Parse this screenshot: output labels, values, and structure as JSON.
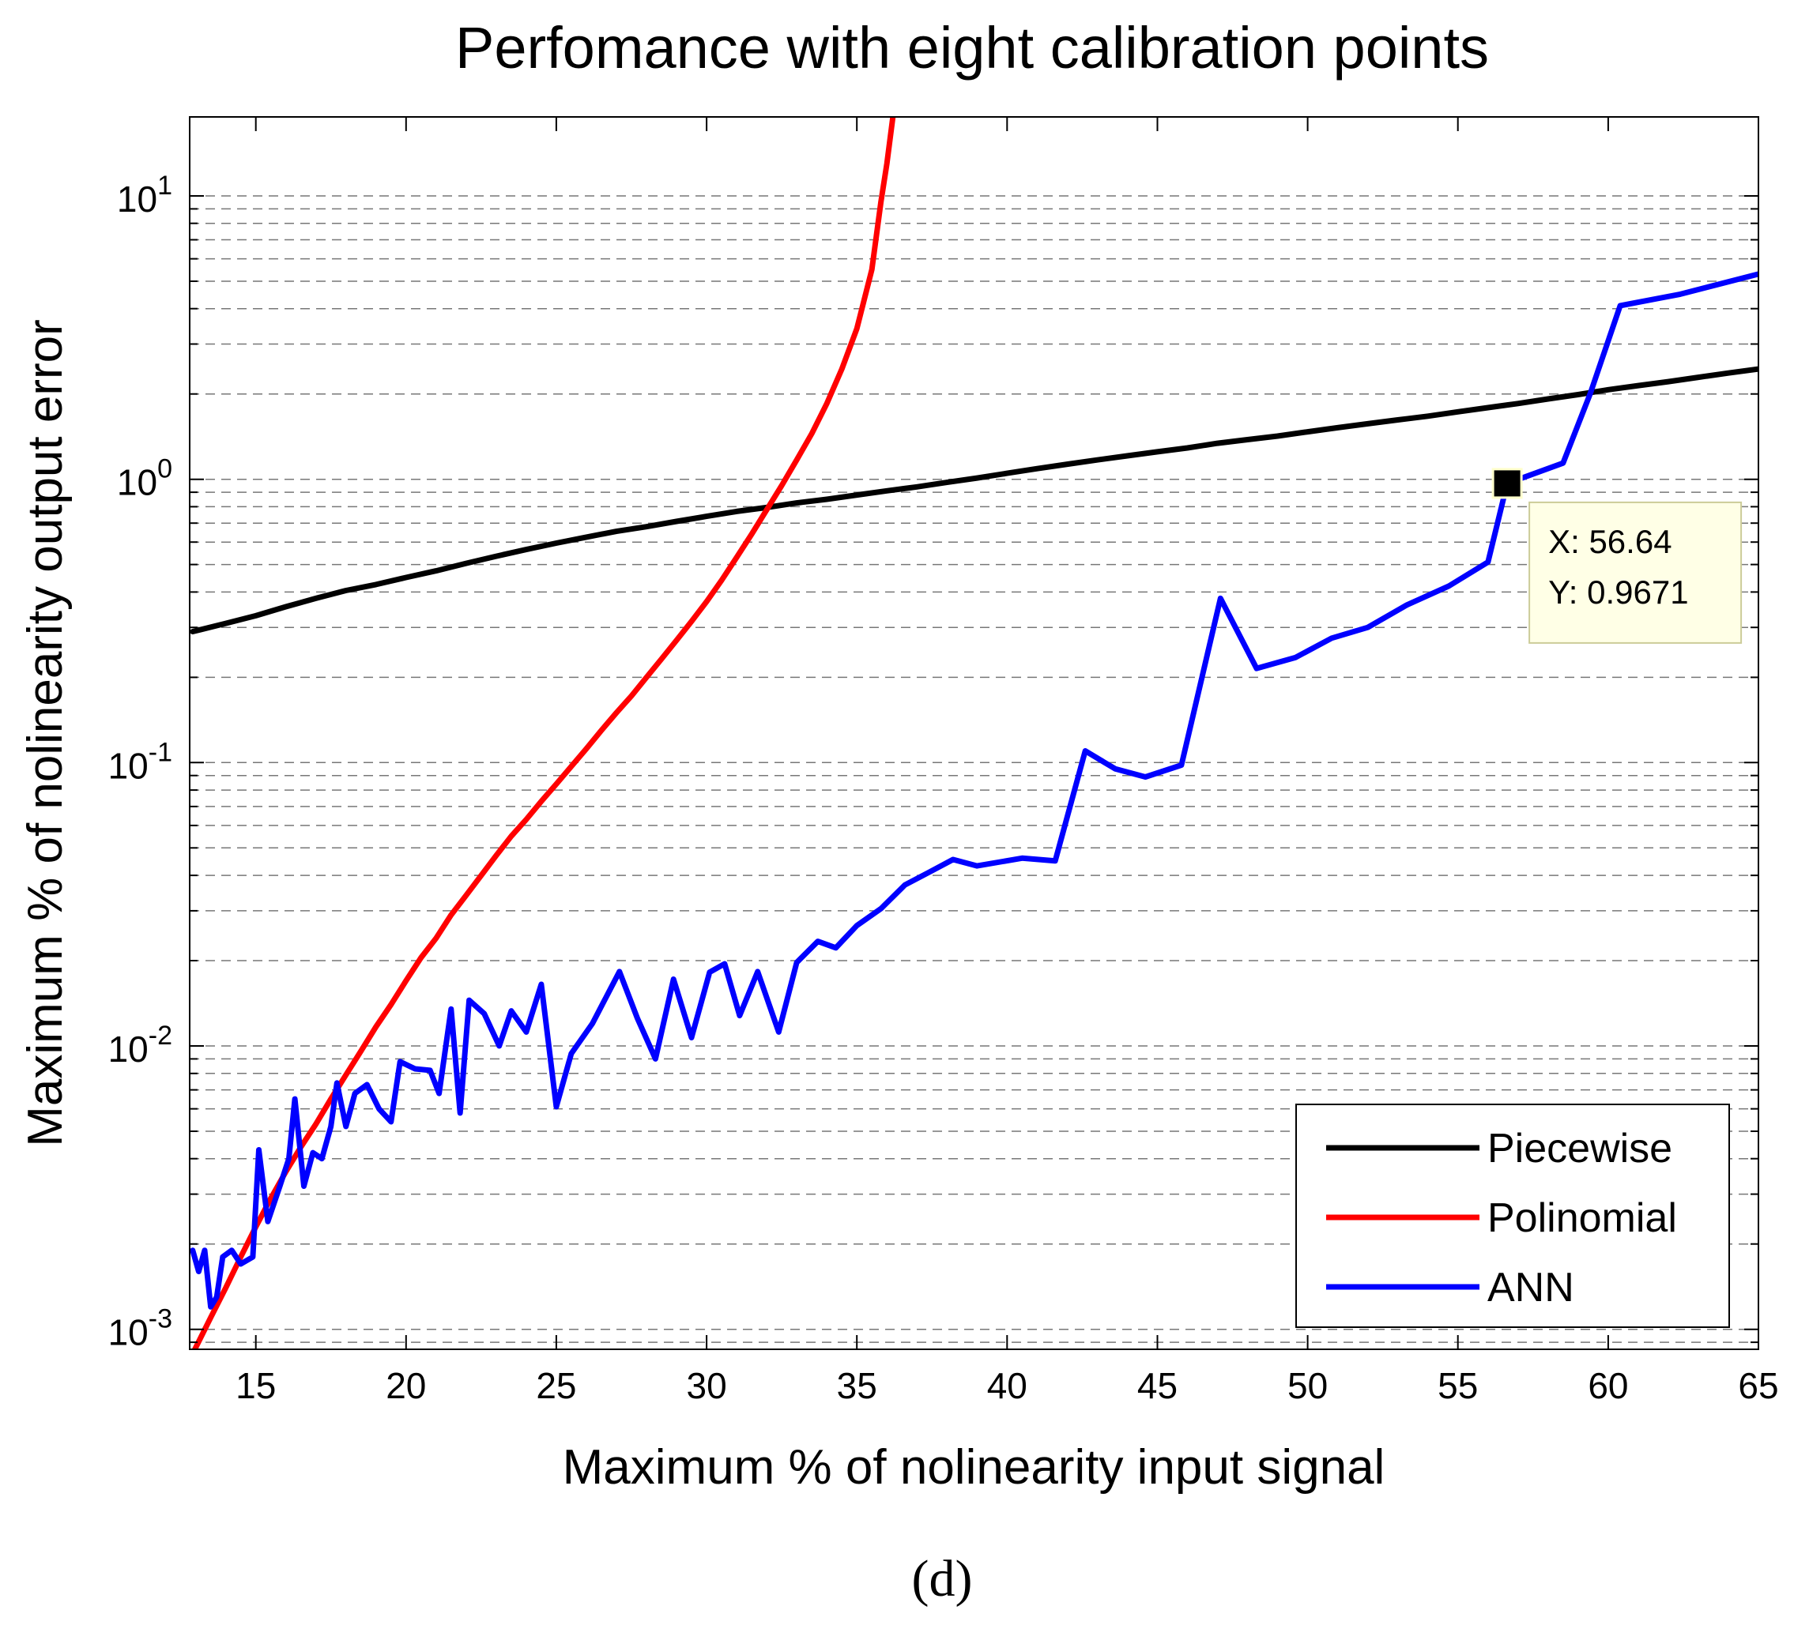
{
  "chart_data": {
    "type": "line",
    "title": "Perfomance with eight calibration points",
    "xlabel": "Maximum % of nolinearity input signal",
    "ylabel": "Maximum % of nolinearity output error",
    "xscale": "linear",
    "yscale": "log",
    "xlim": [
      12.8,
      65
    ],
    "ylim": [
      0.00085,
      19
    ],
    "xticks": [
      15,
      20,
      25,
      30,
      35,
      40,
      45,
      50,
      55,
      60,
      65
    ],
    "yticks": [
      0.001,
      0.01,
      0.1,
      1,
      10
    ],
    "ytick_labels": [
      {
        "base": "10",
        "exp": "-3"
      },
      {
        "base": "10",
        "exp": "-2"
      },
      {
        "base": "10",
        "exp": "-1"
      },
      {
        "base": "10",
        "exp": "0"
      },
      {
        "base": "10",
        "exp": "1"
      }
    ],
    "grid": {
      "y_minor": true,
      "x": false,
      "style": "dashed"
    },
    "legend_position": "bottom-right",
    "series": [
      {
        "name": "Piecewise",
        "color": "#000000",
        "points": [
          [
            12.9,
            0.29
          ],
          [
            14,
            0.31
          ],
          [
            15,
            0.33
          ],
          [
            16,
            0.355
          ],
          [
            17,
            0.38
          ],
          [
            18,
            0.405
          ],
          [
            19,
            0.425
          ],
          [
            20,
            0.45
          ],
          [
            21,
            0.475
          ],
          [
            22,
            0.505
          ],
          [
            23,
            0.535
          ],
          [
            24,
            0.565
          ],
          [
            25,
            0.595
          ],
          [
            26,
            0.625
          ],
          [
            27,
            0.655
          ],
          [
            28,
            0.68
          ],
          [
            29,
            0.71
          ],
          [
            30,
            0.74
          ],
          [
            31,
            0.77
          ],
          [
            32,
            0.795
          ],
          [
            33,
            0.825
          ],
          [
            34,
            0.85
          ],
          [
            35,
            0.88
          ],
          [
            36,
            0.91
          ],
          [
            37,
            0.94
          ],
          [
            38,
            0.975
          ],
          [
            39,
            1.01
          ],
          [
            40,
            1.05
          ],
          [
            41,
            1.09
          ],
          [
            42,
            1.13
          ],
          [
            43,
            1.17
          ],
          [
            44,
            1.21
          ],
          [
            45,
            1.25
          ],
          [
            46,
            1.29
          ],
          [
            47,
            1.34
          ],
          [
            48,
            1.38
          ],
          [
            49,
            1.42
          ],
          [
            50,
            1.47
          ],
          [
            51,
            1.52
          ],
          [
            52,
            1.57
          ],
          [
            53,
            1.62
          ],
          [
            54,
            1.67
          ],
          [
            55,
            1.73
          ],
          [
            56,
            1.79
          ],
          [
            57,
            1.85
          ],
          [
            58,
            1.92
          ],
          [
            59,
            1.99
          ],
          [
            60,
            2.07
          ],
          [
            61,
            2.14
          ],
          [
            62,
            2.21
          ],
          [
            63,
            2.29
          ],
          [
            64,
            2.37
          ],
          [
            65,
            2.45
          ]
        ]
      },
      {
        "name": "Polinomial",
        "color": "#ff0000",
        "points": [
          [
            12.9,
            0.00082
          ],
          [
            13.5,
            0.0011
          ],
          [
            14,
            0.0014
          ],
          [
            14.5,
            0.0018
          ],
          [
            15,
            0.0023
          ],
          [
            15.5,
            0.0029
          ],
          [
            16,
            0.0036
          ],
          [
            16.5,
            0.0044
          ],
          [
            17,
            0.0053
          ],
          [
            17.5,
            0.0065
          ],
          [
            18,
            0.0079
          ],
          [
            18.5,
            0.0096
          ],
          [
            19,
            0.0117
          ],
          [
            19.5,
            0.014
          ],
          [
            20,
            0.017
          ],
          [
            20.5,
            0.0205
          ],
          [
            21,
            0.024
          ],
          [
            21.5,
            0.029
          ],
          [
            22,
            0.034
          ],
          [
            22.5,
            0.04
          ],
          [
            23,
            0.047
          ],
          [
            23.5,
            0.055
          ],
          [
            24,
            0.063
          ],
          [
            24.5,
            0.073
          ],
          [
            25,
            0.084
          ],
          [
            25.5,
            0.097
          ],
          [
            26,
            0.112
          ],
          [
            26.5,
            0.13
          ],
          [
            27,
            0.15
          ],
          [
            27.5,
            0.172
          ],
          [
            28,
            0.2
          ],
          [
            28.5,
            0.232
          ],
          [
            29,
            0.27
          ],
          [
            29.5,
            0.315
          ],
          [
            30,
            0.37
          ],
          [
            30.5,
            0.44
          ],
          [
            31,
            0.53
          ],
          [
            31.5,
            0.64
          ],
          [
            32,
            0.78
          ],
          [
            32.5,
            0.95
          ],
          [
            33,
            1.17
          ],
          [
            33.5,
            1.45
          ],
          [
            34,
            1.85
          ],
          [
            34.5,
            2.45
          ],
          [
            35,
            3.4
          ],
          [
            35.5,
            5.5
          ],
          [
            35.8,
            9.5
          ],
          [
            36,
            13
          ],
          [
            36.2,
            19
          ]
        ]
      },
      {
        "name": "ANN",
        "color": "#0000ff",
        "points": [
          [
            12.9,
            0.0019
          ],
          [
            13.1,
            0.0016
          ],
          [
            13.3,
            0.0019
          ],
          [
            13.5,
            0.0012
          ],
          [
            13.7,
            0.0013
          ],
          [
            13.9,
            0.0018
          ],
          [
            14.2,
            0.0019
          ],
          [
            14.5,
            0.0017
          ],
          [
            14.9,
            0.0018
          ],
          [
            15.1,
            0.0043
          ],
          [
            15.4,
            0.0024
          ],
          [
            15.8,
            0.0032
          ],
          [
            16.1,
            0.004
          ],
          [
            16.3,
            0.0065
          ],
          [
            16.6,
            0.0032
          ],
          [
            16.9,
            0.0042
          ],
          [
            17.2,
            0.004
          ],
          [
            17.5,
            0.0052
          ],
          [
            17.7,
            0.0074
          ],
          [
            18.0,
            0.0052
          ],
          [
            18.3,
            0.0068
          ],
          [
            18.7,
            0.0073
          ],
          [
            19.1,
            0.006
          ],
          [
            19.5,
            0.0054
          ],
          [
            19.8,
            0.0088
          ],
          [
            20.3,
            0.0083
          ],
          [
            20.8,
            0.0082
          ],
          [
            21.1,
            0.0068
          ],
          [
            21.5,
            0.0135
          ],
          [
            21.8,
            0.0058
          ],
          [
            22.1,
            0.0145
          ],
          [
            22.6,
            0.013
          ],
          [
            23.1,
            0.01
          ],
          [
            23.5,
            0.0133
          ],
          [
            24.0,
            0.0112
          ],
          [
            24.5,
            0.0165
          ],
          [
            25.0,
            0.0061
          ],
          [
            25.5,
            0.0094
          ],
          [
            26.2,
            0.012
          ],
          [
            27.1,
            0.0183
          ],
          [
            27.7,
            0.0125
          ],
          [
            28.3,
            0.009
          ],
          [
            28.9,
            0.0172
          ],
          [
            29.5,
            0.0107
          ],
          [
            30.1,
            0.0182
          ],
          [
            30.6,
            0.0195
          ],
          [
            31.1,
            0.0128
          ],
          [
            31.7,
            0.0183
          ],
          [
            32.4,
            0.0112
          ],
          [
            33.0,
            0.0197
          ],
          [
            33.7,
            0.0234
          ],
          [
            34.3,
            0.0222
          ],
          [
            35.0,
            0.0266
          ],
          [
            35.8,
            0.0305
          ],
          [
            36.6,
            0.037
          ],
          [
            37.4,
            0.041
          ],
          [
            38.2,
            0.0455
          ],
          [
            39.0,
            0.0432
          ],
          [
            40.5,
            0.046
          ],
          [
            41.6,
            0.045
          ],
          [
            42.6,
            0.11
          ],
          [
            43.6,
            0.095
          ],
          [
            44.6,
            0.089
          ],
          [
            45.8,
            0.098
          ],
          [
            47.1,
            0.38
          ],
          [
            48.3,
            0.215
          ],
          [
            49.6,
            0.235
          ],
          [
            50.8,
            0.275
          ],
          [
            52.0,
            0.3
          ],
          [
            53.3,
            0.36
          ],
          [
            54.7,
            0.42
          ],
          [
            56.0,
            0.51
          ],
          [
            56.64,
            0.9671
          ],
          [
            58.5,
            1.14
          ],
          [
            59.4,
            2.0
          ],
          [
            60.4,
            4.1
          ],
          [
            62.4,
            4.5
          ],
          [
            65.0,
            5.3
          ]
        ]
      }
    ],
    "datatip": {
      "x_label": "X: 56.64",
      "y_label": "Y: 0.9671",
      "x": 56.64,
      "y": 0.9671
    },
    "caption": "(d)"
  }
}
